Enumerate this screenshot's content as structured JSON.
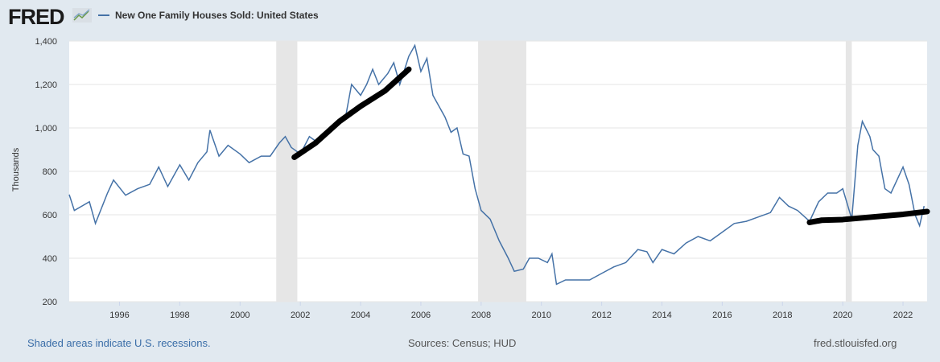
{
  "header": {
    "logo": "FRED",
    "legend_label": "New One Family Houses Sold: United States"
  },
  "footer": {
    "note": "Shaded areas indicate U.S. recessions.",
    "sources": "Sources: Census; HUD",
    "site": "fred.stlouisfed.org"
  },
  "chart_data": {
    "type": "line",
    "title": "",
    "ylabel": "Thousands",
    "xlabel": "",
    "xlim": [
      1994.33,
      2022.8
    ],
    "ylim": [
      200,
      1400
    ],
    "yticks": [
      200,
      400,
      600,
      800,
      1000,
      1200,
      1400
    ],
    "ytick_labels": [
      "200",
      "400",
      "600",
      "800",
      "1,000",
      "1,200",
      "1,400"
    ],
    "xticks": [
      1996,
      1998,
      2000,
      2002,
      2004,
      2006,
      2008,
      2010,
      2012,
      2014,
      2016,
      2018,
      2020,
      2022
    ],
    "xtick_labels": [
      "1996",
      "1998",
      "2000",
      "2002",
      "2004",
      "2006",
      "2008",
      "2010",
      "2012",
      "2014",
      "2016",
      "2018",
      "2020",
      "2022"
    ],
    "grid": "horizontal",
    "series": [
      {
        "name": "New One Family Houses Sold: United States",
        "color": "#4572a7",
        "x": [
          1994.33,
          1994.5,
          1995.0,
          1995.2,
          1995.6,
          1995.8,
          1996.2,
          1996.6,
          1997.0,
          1997.3,
          1997.6,
          1998.0,
          1998.3,
          1998.6,
          1998.9,
          1999.0,
          1999.3,
          1999.6,
          2000.0,
          2000.3,
          2000.7,
          2001.0,
          2001.3,
          2001.5,
          2001.7,
          2002.0,
          2002.3,
          2002.6,
          2003.0,
          2003.3,
          2003.5,
          2003.7,
          2004.0,
          2004.2,
          2004.4,
          2004.6,
          2004.9,
          2005.1,
          2005.3,
          2005.6,
          2005.8,
          2006.0,
          2006.2,
          2006.4,
          2006.6,
          2006.8,
          2007.0,
          2007.2,
          2007.4,
          2007.6,
          2007.8,
          2008.0,
          2008.3,
          2008.6,
          2008.9,
          2009.1,
          2009.4,
          2009.6,
          2009.9,
          2010.2,
          2010.35,
          2010.5,
          2010.8,
          2011.2,
          2011.6,
          2012.0,
          2012.4,
          2012.8,
          2013.2,
          2013.5,
          2013.7,
          2014.0,
          2014.4,
          2014.8,
          2015.2,
          2015.6,
          2016.0,
          2016.4,
          2016.8,
          2017.2,
          2017.6,
          2017.9,
          2018.2,
          2018.5,
          2018.9,
          2019.2,
          2019.5,
          2019.8,
          2020.0,
          2020.3,
          2020.5,
          2020.65,
          2020.9,
          2021.0,
          2021.2,
          2021.4,
          2021.6,
          2021.8,
          2022.0,
          2022.2,
          2022.4,
          2022.55,
          2022.7
        ],
        "values": [
          693,
          620,
          660,
          560,
          700,
          760,
          690,
          720,
          740,
          820,
          730,
          830,
          760,
          840,
          890,
          990,
          870,
          920,
          880,
          840,
          870,
          870,
          930,
          960,
          910,
          880,
          960,
          930,
          1000,
          1030,
          1050,
          1200,
          1150,
          1200,
          1270,
          1200,
          1250,
          1300,
          1200,
          1330,
          1380,
          1260,
          1320,
          1150,
          1100,
          1050,
          980,
          1000,
          880,
          870,
          720,
          620,
          580,
          480,
          400,
          340,
          350,
          400,
          400,
          380,
          420,
          280,
          300,
          300,
          300,
          330,
          360,
          380,
          440,
          430,
          380,
          440,
          420,
          470,
          500,
          480,
          520,
          560,
          570,
          590,
          610,
          680,
          640,
          620,
          570,
          660,
          700,
          700,
          720,
          580,
          920,
          1030,
          960,
          900,
          870,
          720,
          700,
          760,
          820,
          740,
          600,
          550,
          640
        ]
      }
    ],
    "recessions": [
      [
        2001.2,
        2001.9
      ],
      [
        2007.9,
        2009.5
      ],
      [
        2020.1,
        2020.3
      ]
    ],
    "annotations": [
      {
        "type": "hand-drawn-line",
        "color": "#000000",
        "x": [
          2001.8,
          2002.5,
          2003.3,
          2004.0,
          2004.8,
          2005.6
        ],
        "values": [
          865,
          930,
          1030,
          1100,
          1170,
          1270
        ]
      },
      {
        "type": "hand-drawn-line",
        "color": "#000000",
        "x": [
          2018.9,
          2019.3,
          2020.0,
          2021.0,
          2022.0,
          2022.8
        ],
        "values": [
          565,
          575,
          578,
          590,
          602,
          615
        ]
      }
    ]
  }
}
